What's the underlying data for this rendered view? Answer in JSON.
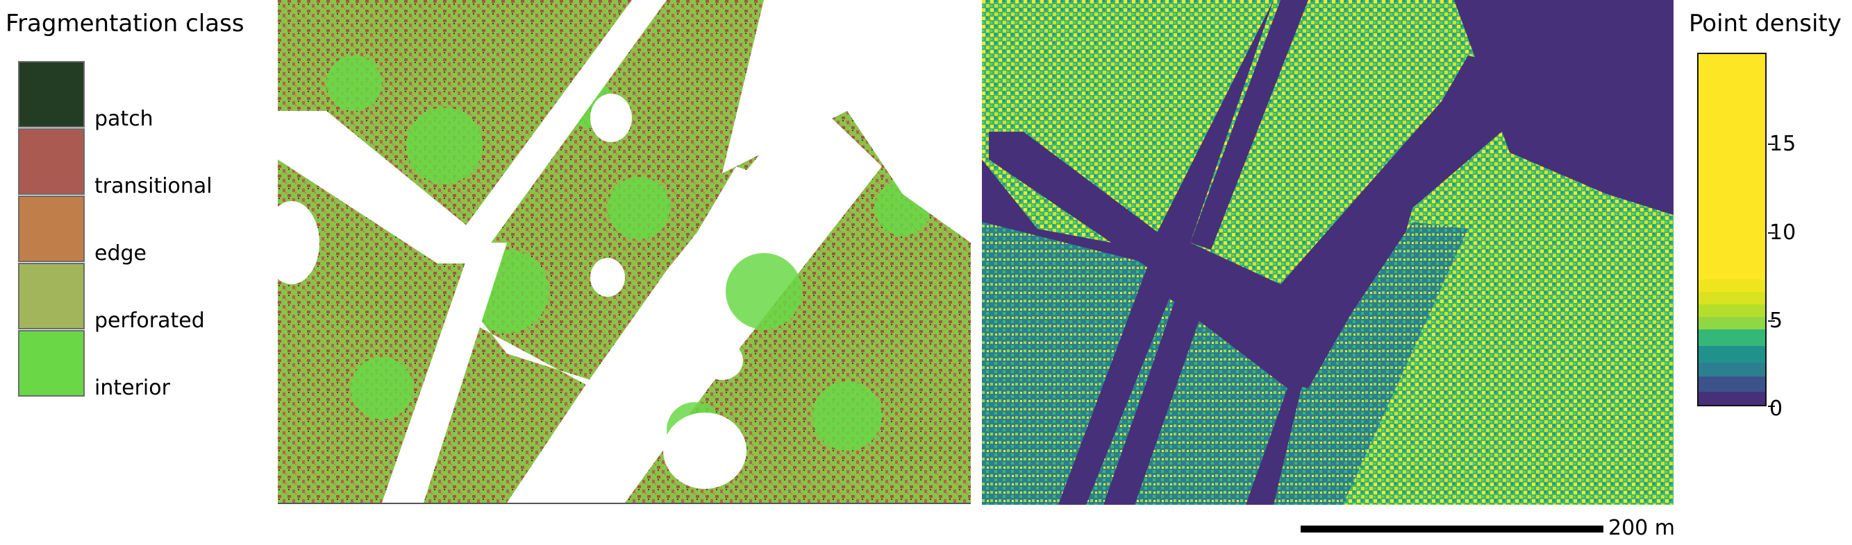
{
  "fragmentation_legend": {
    "title": "Fragmentation class",
    "items": [
      {
        "label": "patch",
        "color": "#223d24"
      },
      {
        "label": "transitional",
        "color": "#aa5a50"
      },
      {
        "label": "edge",
        "color": "#c07f4a"
      },
      {
        "label": "perforated",
        "color": "#a2b55a"
      },
      {
        "label": "interior",
        "color": "#6ad846"
      }
    ]
  },
  "density_legend": {
    "title": "Point density",
    "ticks": [
      "15",
      "10",
      "5",
      "0"
    ],
    "colors": [
      "#46307a",
      "#3b528b",
      "#2c7f8e",
      "#21918c",
      "#35b779",
      "#6ece58",
      "#90d743",
      "#b5de2b",
      "#d9e21f",
      "#fde725"
    ]
  },
  "scalebar": {
    "label": "200 m"
  },
  "maps": {
    "left": {
      "background": "#ffffff",
      "forest_color": "#a06a4e",
      "interior_color": "#6ad846"
    },
    "right": {
      "background": "#46307a"
    }
  }
}
